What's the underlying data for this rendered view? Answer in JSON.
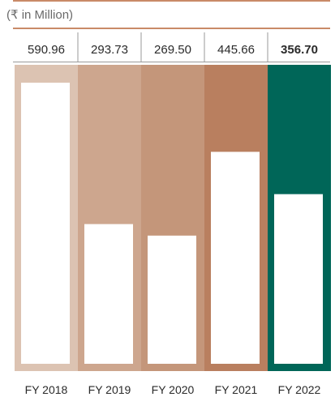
{
  "unit_label": "(₹ in Million)",
  "chart_data": {
    "type": "bar",
    "categories": [
      "FY 2018",
      "FY 2019",
      "FY 2020",
      "FY 2021",
      "FY 2022"
    ],
    "values": [
      590.96,
      293.73,
      269.5,
      445.66,
      356.7
    ],
    "value_labels": [
      "590.96",
      "293.73",
      "269.50",
      "445.66",
      "356.70"
    ],
    "ylim": [
      0,
      700
    ],
    "column_colors": [
      "#dcc3b2",
      "#cda68e",
      "#c4967a",
      "#b97f5f",
      "#006658"
    ],
    "bar_color": "#ffffff",
    "highlight_index": 4,
    "grid": false,
    "title": "",
    "xlabel": "",
    "ylabel": ""
  }
}
